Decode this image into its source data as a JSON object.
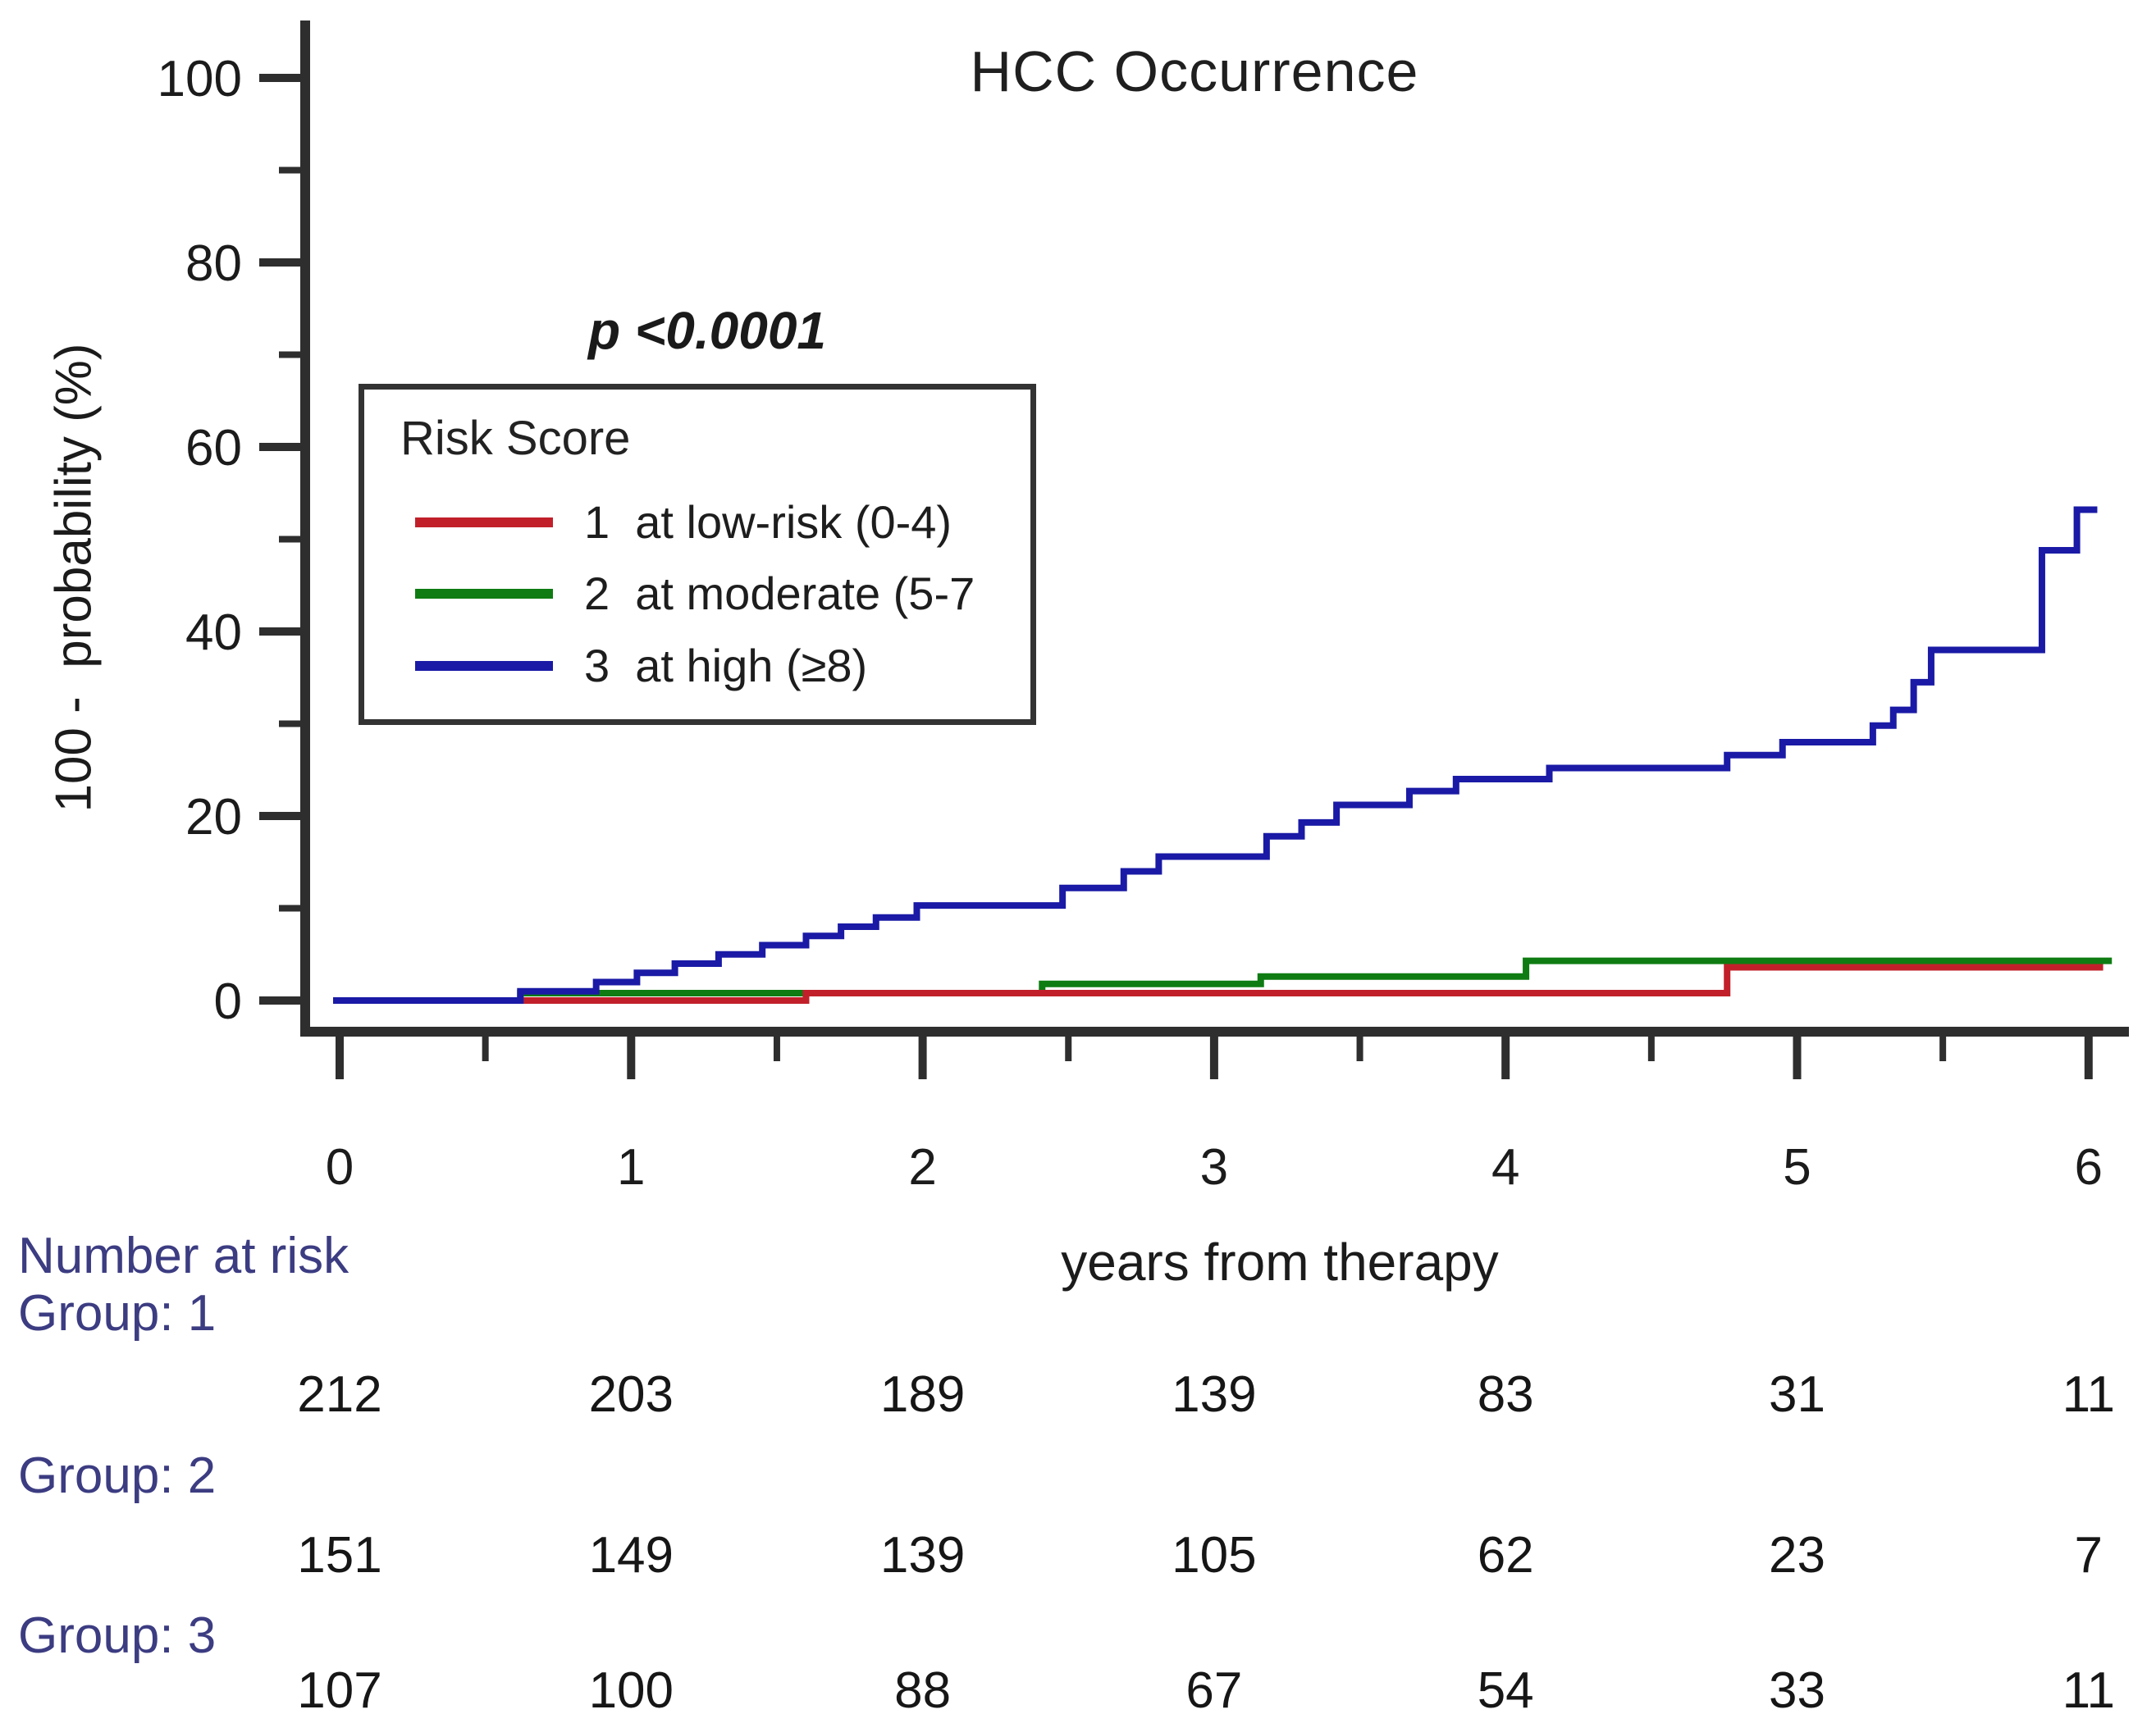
{
  "title": "HCC Occurrence",
  "p_value": "p <0.0001",
  "y_axis": {
    "label": "100 -  probability (%)",
    "ticks": [
      0,
      20,
      40,
      60,
      80,
      100
    ],
    "minor_ticks": [
      10,
      30,
      50,
      70,
      90
    ],
    "range": [
      0,
      105
    ]
  },
  "x_axis": {
    "label": "years from therapy",
    "ticks": [
      0,
      1,
      2,
      3,
      4,
      5,
      6
    ],
    "minor_ticks": [
      0.5,
      1.5,
      2.5,
      3.5,
      4.5,
      5.5
    ],
    "range": [
      0,
      6.2
    ]
  },
  "legend": {
    "title": "Risk Score",
    "items": [
      {
        "label": "1  at low-risk (0-4)",
        "color": "#c1202a"
      },
      {
        "label": "2  at moderate (5-7",
        "color": "#0e7c12"
      },
      {
        "label": "3  at high (≥8)",
        "color": "#1a1aa6"
      }
    ]
  },
  "number_at_risk": {
    "header": "Number at risk",
    "columns": [
      0,
      1,
      2,
      3,
      4,
      5,
      6
    ],
    "rows": [
      {
        "label": "Group: 1",
        "values": [
          212,
          203,
          189,
          139,
          83,
          31,
          11
        ]
      },
      {
        "label": "Group: 2",
        "values": [
          151,
          149,
          139,
          105,
          62,
          23,
          7
        ]
      },
      {
        "label": "Group: 3",
        "values": [
          107,
          100,
          88,
          67,
          54,
          33,
          11
        ]
      }
    ]
  },
  "colors": {
    "axis": "#2e2e2e",
    "red_series": "#c1202a",
    "green_series": "#0e7c12",
    "blue_series": "#1a1aa6",
    "navy_text": "#3c3c82"
  },
  "chart_data": {
    "type": "line",
    "subtype": "kaplan-meier-step",
    "title": "HCC Occurrence",
    "xlabel": "years from therapy",
    "ylabel": "100 -  probability (%)",
    "xlim": [
      0,
      6.2
    ],
    "ylim": [
      0,
      105
    ],
    "grid": false,
    "legend_position": "upper-left-inside",
    "annotation": "p <0.0001",
    "step_interpolation": "step-after",
    "series": [
      {
        "name": "1 at low-risk (0-4)",
        "group": "Group: 1",
        "color": "#c1202a",
        "points": [
          [
            0,
            0
          ],
          [
            1.6,
            0.8
          ],
          [
            4.76,
            3.6
          ],
          [
            6.05,
            3.6
          ]
        ]
      },
      {
        "name": "2 at moderate (5-7)",
        "group": "Group: 2",
        "color": "#0e7c12",
        "points": [
          [
            0,
            0
          ],
          [
            0.62,
            0.8
          ],
          [
            2.41,
            1.8
          ],
          [
            3.16,
            2.6
          ],
          [
            4.07,
            4.3
          ],
          [
            6.08,
            4.3
          ]
        ]
      },
      {
        "name": "3 at high (>=8)",
        "group": "Group: 3",
        "color": "#1a1aa6",
        "points": [
          [
            0,
            0
          ],
          [
            0.62,
            1
          ],
          [
            0.88,
            2
          ],
          [
            1.02,
            3
          ],
          [
            1.15,
            4
          ],
          [
            1.3,
            5
          ],
          [
            1.45,
            6
          ],
          [
            1.6,
            7
          ],
          [
            1.72,
            8
          ],
          [
            1.84,
            9
          ],
          [
            1.98,
            10.3
          ],
          [
            2.48,
            12.2
          ],
          [
            2.69,
            14
          ],
          [
            2.81,
            15.6
          ],
          [
            3.18,
            17.8
          ],
          [
            3.3,
            19.3
          ],
          [
            3.42,
            21.2
          ],
          [
            3.67,
            22.7
          ],
          [
            3.83,
            24
          ],
          [
            4.15,
            25.2
          ],
          [
            4.76,
            26.6
          ],
          [
            4.95,
            28
          ],
          [
            5.26,
            29.8
          ],
          [
            5.33,
            31.5
          ],
          [
            5.4,
            34.5
          ],
          [
            5.46,
            38
          ],
          [
            5.84,
            48.8
          ],
          [
            5.96,
            53.2
          ],
          [
            6.03,
            53.2
          ]
        ]
      }
    ],
    "number_at_risk": {
      "times": [
        0,
        1,
        2,
        3,
        4,
        5,
        6
      ],
      "Group: 1": [
        212,
        203,
        189,
        139,
        83,
        31,
        11
      ],
      "Group: 2": [
        151,
        149,
        139,
        105,
        62,
        23,
        7
      ],
      "Group: 3": [
        107,
        100,
        88,
        67,
        54,
        33,
        11
      ]
    }
  }
}
